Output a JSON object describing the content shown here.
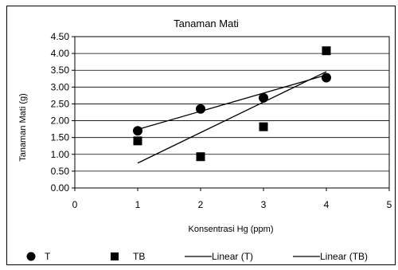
{
  "chart_data": {
    "type": "scatter",
    "title": "Tanaman Mati",
    "xlabel": "Konsentrasi Hg (ppm)",
    "ylabel": "Tanaman Mati (g)",
    "xlim": [
      0,
      5
    ],
    "ylim": [
      0,
      4.5
    ],
    "x_ticks": [
      "0",
      "1",
      "2",
      "3",
      "4",
      "5"
    ],
    "y_ticks": [
      "0.00",
      "0.50",
      "1.00",
      "1.50",
      "2.00",
      "2.50",
      "3.00",
      "3.50",
      "4.00",
      "4.50"
    ],
    "grid": "horizontal",
    "legend_position": "bottom",
    "series": [
      {
        "name": "T",
        "marker": "circle",
        "color": "#000000",
        "x": [
          1,
          2,
          3,
          4
        ],
        "y": [
          1.7,
          2.35,
          2.68,
          3.28
        ]
      },
      {
        "name": "TB",
        "marker": "square",
        "color": "#000000",
        "x": [
          1,
          2,
          3,
          4
        ],
        "y": [
          1.4,
          0.93,
          1.82,
          4.08
        ]
      }
    ],
    "trendlines": [
      {
        "name": "Linear (T)",
        "x": [
          1,
          4
        ],
        "y": [
          1.74,
          3.36
        ],
        "color": "#000000"
      },
      {
        "name": "Linear (TB)",
        "x": [
          1,
          4
        ],
        "y": [
          0.74,
          3.46
        ],
        "color": "#000000"
      }
    ]
  }
}
